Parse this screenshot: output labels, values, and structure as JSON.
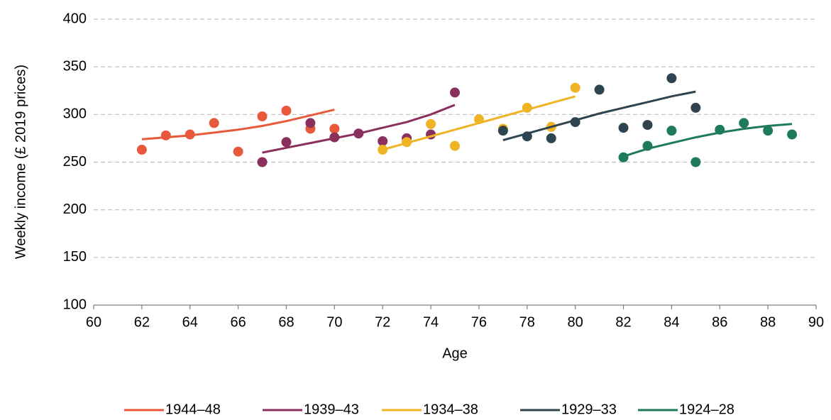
{
  "chart_data": {
    "type": "scatter-trend",
    "x_label": "Age",
    "y_label": "Weekly income (£ 2019 prices)",
    "xlim": [
      60,
      90
    ],
    "xticks": [
      60,
      62,
      64,
      66,
      68,
      70,
      72,
      74,
      76,
      78,
      80,
      82,
      84,
      86,
      88,
      90
    ],
    "ylim": [
      100,
      400
    ],
    "yticks": [
      100,
      150,
      200,
      250,
      300,
      350,
      400
    ],
    "grid": true,
    "legend": "bottom",
    "series": [
      {
        "name": "1944–48",
        "color": "#e8593c",
        "x": [
          62,
          63,
          64,
          65,
          66,
          67,
          68,
          69,
          70
        ],
        "values": [
          263,
          278,
          279,
          291,
          261,
          298,
          304,
          285,
          285
        ],
        "trend": [
          274,
          276,
          278,
          281,
          284,
          288,
          293,
          299,
          305
        ]
      },
      {
        "name": "1939–43",
        "color": "#8b2f5e",
        "x": [
          67,
          68,
          69,
          70,
          71,
          72,
          73,
          74,
          75
        ],
        "values": [
          250,
          271,
          291,
          276,
          280,
          272,
          275,
          279,
          323
        ],
        "trend": [
          260,
          265,
          270,
          275,
          280,
          286,
          292,
          300,
          310
        ]
      },
      {
        "name": "1934–38",
        "color": "#f0b323",
        "x": [
          72,
          73,
          74,
          75,
          76,
          77,
          78,
          79,
          80
        ],
        "values": [
          263,
          271,
          290,
          267,
          295,
          285,
          307,
          287,
          328
        ],
        "trend": [
          263,
          270,
          277,
          284,
          291,
          298,
          305,
          312,
          319
        ]
      },
      {
        "name": "1929–33",
        "color": "#2e4450",
        "x": [
          77,
          78,
          79,
          80,
          81,
          82,
          83,
          84,
          85
        ],
        "values": [
          283,
          277,
          275,
          292,
          326,
          286,
          289,
          338,
          307
        ],
        "trend": [
          273,
          280,
          287,
          294,
          301,
          307,
          313,
          319,
          324
        ]
      },
      {
        "name": "1924–28",
        "color": "#1f7a5a",
        "x": [
          82,
          83,
          84,
          85,
          86,
          87,
          88,
          89
        ],
        "values": [
          255,
          267,
          283,
          250,
          284,
          291,
          283,
          279
        ],
        "trend": [
          256,
          264,
          270,
          276,
          281,
          285,
          288,
          290
        ]
      }
    ]
  }
}
